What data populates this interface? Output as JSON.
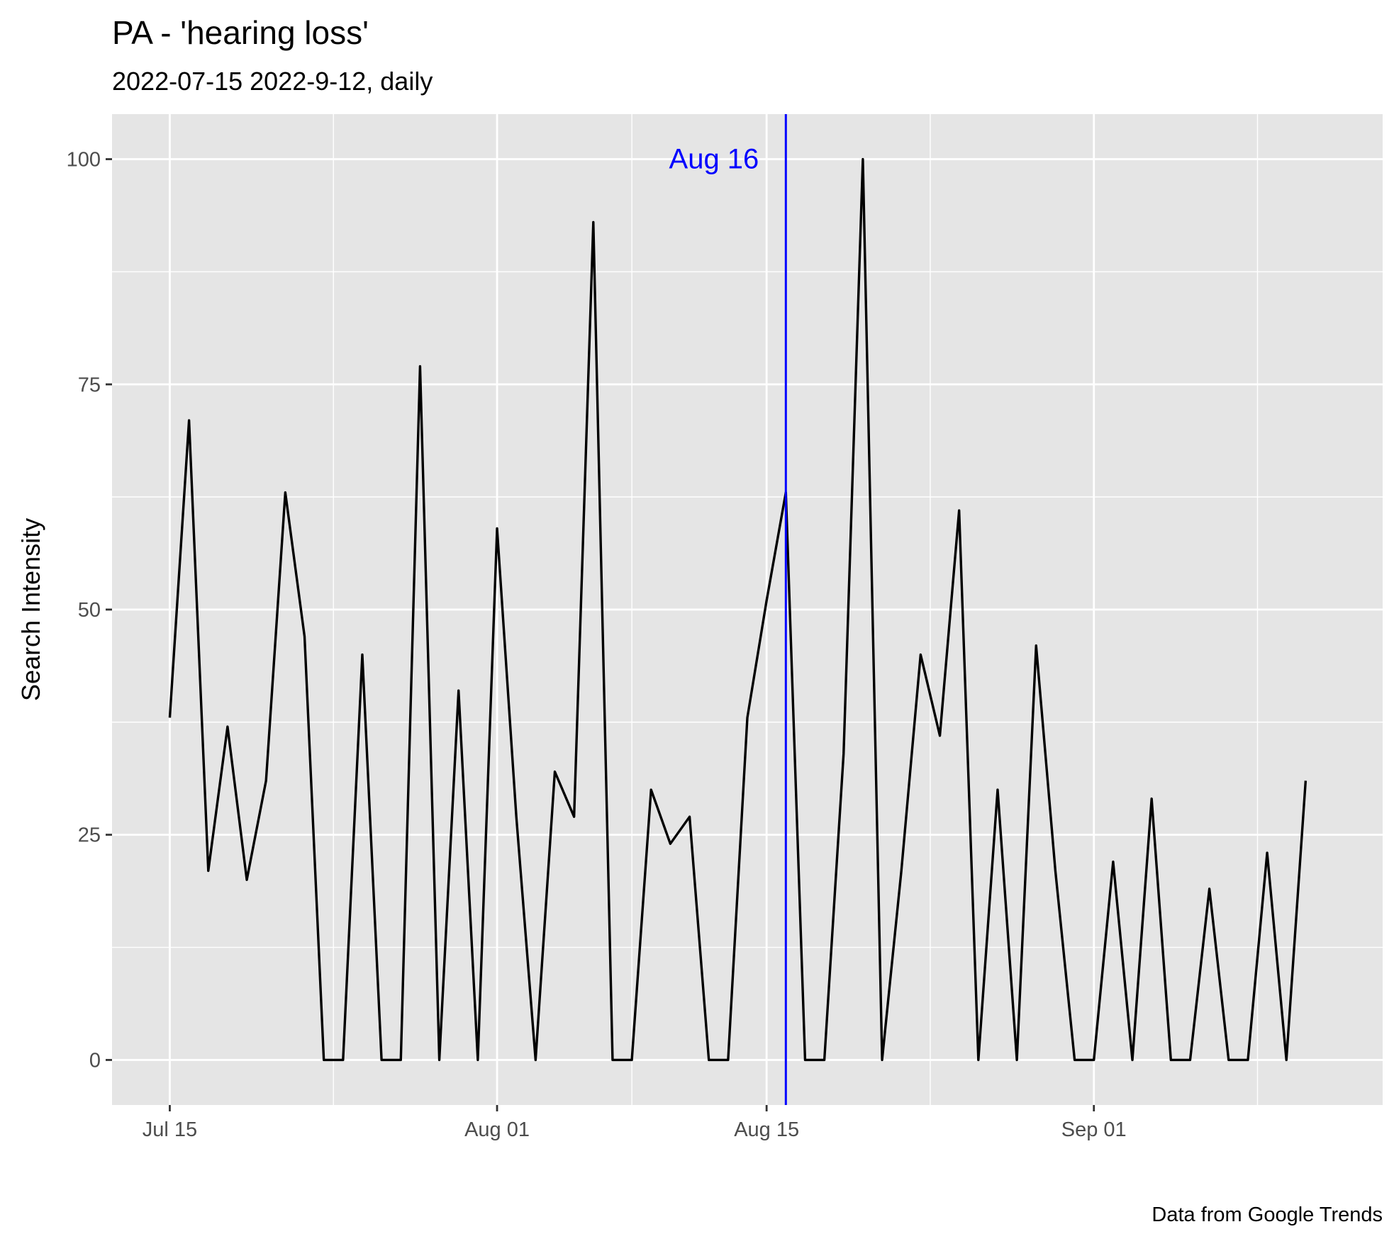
{
  "chart_data": {
    "type": "line",
    "title": "PA  - 'hearing loss'",
    "subtitle": "2022-07-15 2022-9-12, daily",
    "xlabel": "",
    "ylabel": "Search Intensity",
    "caption": "Data from Google Trends",
    "xlim": [
      "2022-07-12",
      "2022-09-16"
    ],
    "ylim": [
      -5,
      105
    ],
    "x_ticks": [
      {
        "date": "2022-07-15",
        "label": "Jul 15"
      },
      {
        "date": "2022-08-01",
        "label": "Aug 01"
      },
      {
        "date": "2022-08-15",
        "label": "Aug 15"
      },
      {
        "date": "2022-09-01",
        "label": "Sep 01"
      }
    ],
    "y_ticks": [
      0,
      25,
      50,
      75,
      100
    ],
    "grid": true,
    "legend": "none",
    "colors": {
      "panel": "#e5e5e5",
      "grid": "#ffffff",
      "line": "#000000",
      "vline": "#0000ff",
      "tick_text": "#4d4d4d"
    },
    "vline": {
      "date": "2022-08-16",
      "label": "Aug 16"
    },
    "series": [
      {
        "x": [
          "2022-07-15",
          "2022-07-16",
          "2022-07-17",
          "2022-07-18",
          "2022-07-19",
          "2022-07-20",
          "2022-07-21",
          "2022-07-22",
          "2022-07-23",
          "2022-07-24",
          "2022-07-25",
          "2022-07-26",
          "2022-07-27",
          "2022-07-28",
          "2022-07-29",
          "2022-07-30",
          "2022-07-31",
          "2022-08-01",
          "2022-08-02",
          "2022-08-03",
          "2022-08-04",
          "2022-08-05",
          "2022-08-06",
          "2022-08-07",
          "2022-08-08",
          "2022-08-09",
          "2022-08-10",
          "2022-08-11",
          "2022-08-12",
          "2022-08-13",
          "2022-08-14",
          "2022-08-15",
          "2022-08-16",
          "2022-08-17",
          "2022-08-18",
          "2022-08-19",
          "2022-08-20",
          "2022-08-21",
          "2022-08-22",
          "2022-08-23",
          "2022-08-24",
          "2022-08-25",
          "2022-08-26",
          "2022-08-27",
          "2022-08-28",
          "2022-08-29",
          "2022-08-30",
          "2022-08-31",
          "2022-09-01",
          "2022-09-02",
          "2022-09-03",
          "2022-09-04",
          "2022-09-05",
          "2022-09-06",
          "2022-09-07",
          "2022-09-08",
          "2022-09-09",
          "2022-09-10",
          "2022-09-11",
          "2022-09-12"
        ],
        "values": [
          38,
          71,
          21,
          37,
          20,
          31,
          63,
          47,
          0,
          0,
          45,
          0,
          0,
          77,
          0,
          41,
          0,
          59,
          27,
          0,
          32,
          27,
          93,
          0,
          0,
          30,
          24,
          27,
          0,
          0,
          38,
          51,
          63,
          0,
          0,
          34,
          100,
          0,
          21,
          45,
          36,
          61,
          0,
          30,
          0,
          46,
          21,
          0,
          0,
          22,
          0,
          29,
          0,
          0,
          19,
          0,
          0,
          23,
          0,
          31
        ]
      }
    ]
  }
}
